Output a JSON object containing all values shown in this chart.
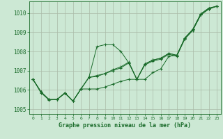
{
  "xlabel": "Graphe pression niveau de la mer (hPa)",
  "background_color": "#cce8d4",
  "plot_bg_color": "#cce8d4",
  "grid_color": "#aabba8",
  "line_color": "#1a6b2a",
  "xlim": [
    -0.5,
    23.5
  ],
  "ylim": [
    1004.75,
    1010.6
  ],
  "yticks": [
    1005,
    1006,
    1007,
    1008,
    1009,
    1010
  ],
  "xticks": [
    0,
    1,
    2,
    3,
    4,
    5,
    6,
    7,
    8,
    9,
    10,
    11,
    12,
    13,
    14,
    15,
    16,
    17,
    18,
    19,
    20,
    21,
    22,
    23
  ],
  "series1_x": [
    0,
    1,
    2,
    3,
    4,
    5,
    6,
    7,
    8,
    9,
    10,
    11,
    12,
    13,
    14,
    15,
    16,
    17,
    18,
    19,
    20,
    21,
    22,
    23
  ],
  "series1_y": [
    1006.55,
    1005.9,
    1005.5,
    1005.5,
    1005.85,
    1005.42,
    1006.05,
    1006.65,
    1008.25,
    1008.35,
    1008.35,
    1008.0,
    1007.4,
    1006.55,
    1006.55,
    1006.9,
    1007.1,
    1007.75,
    1007.8,
    1008.65,
    1009.1,
    1009.9,
    1010.2,
    1010.35
  ],
  "series2_x": [
    0,
    1,
    2,
    3,
    4,
    5,
    6,
    7,
    8,
    9,
    10,
    11,
    12,
    13,
    14,
    15,
    16,
    17,
    18,
    19,
    20,
    21,
    22,
    23
  ],
  "series2_y": [
    1006.55,
    1005.9,
    1005.5,
    1005.5,
    1005.85,
    1005.42,
    1006.05,
    1006.65,
    1006.75,
    1006.85,
    1007.05,
    1007.2,
    1007.45,
    1006.55,
    1007.35,
    1007.55,
    1007.65,
    1007.9,
    1007.8,
    1008.7,
    1009.15,
    1009.95,
    1010.25,
    1010.35
  ],
  "series3_x": [
    0,
    1,
    2,
    3,
    4,
    5,
    6,
    7,
    8,
    9,
    10,
    11,
    12,
    13,
    14,
    15,
    16,
    17,
    18,
    19,
    20,
    21,
    22,
    23
  ],
  "series3_y": [
    1006.55,
    1005.9,
    1005.5,
    1005.5,
    1005.85,
    1005.42,
    1006.05,
    1006.05,
    1006.05,
    1006.15,
    1006.3,
    1006.45,
    1006.55,
    1006.55,
    1007.35,
    1007.55,
    1007.65,
    1007.9,
    1007.8,
    1008.7,
    1009.15,
    1009.95,
    1010.25,
    1010.35
  ],
  "series4_x": [
    0,
    1,
    2,
    3,
    4,
    5,
    6,
    7,
    8,
    9,
    10,
    11,
    12,
    13,
    14,
    15,
    16,
    17,
    18,
    19,
    20,
    21,
    22,
    23
  ],
  "series4_y": [
    1006.55,
    1005.85,
    1005.48,
    1005.5,
    1005.82,
    1005.42,
    1006.05,
    1006.65,
    1006.7,
    1006.85,
    1007.0,
    1007.15,
    1007.4,
    1006.55,
    1007.3,
    1007.5,
    1007.6,
    1007.85,
    1007.75,
    1008.65,
    1009.1,
    1009.9,
    1010.2,
    1010.35
  ]
}
